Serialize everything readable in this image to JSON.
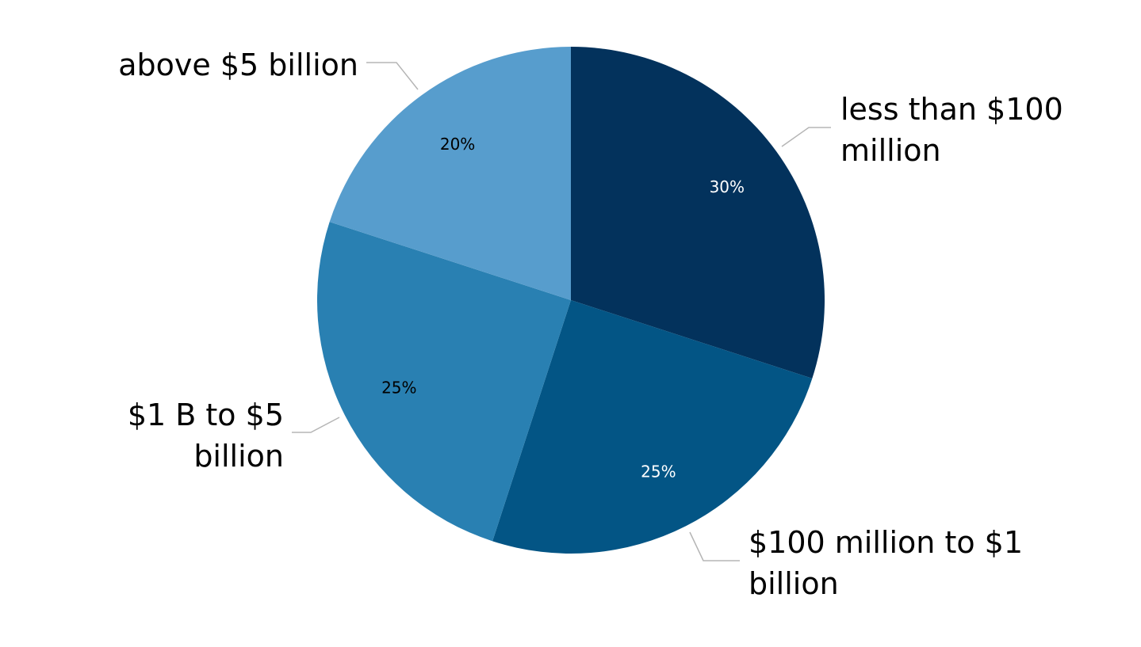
{
  "chart_data": {
    "type": "pie",
    "title": "",
    "start_angle_deg": 0,
    "direction": "clockwise",
    "slices": [
      {
        "label": "less than $100 million",
        "value": 30,
        "value_label": "30%",
        "color": "#03325c",
        "value_label_color": "#ffffff"
      },
      {
        "label": "$100 million to $1 billion",
        "value": 25,
        "value_label": "25%",
        "color": "#035585",
        "value_label_color": "#ffffff"
      },
      {
        "label": "$1 B to $5 billion",
        "value": 25,
        "value_label": "25%",
        "color": "#2980b2",
        "value_label_color": "#000000"
      },
      {
        "label": "above $5 billion",
        "value": 20,
        "value_label": "20%",
        "color": "#579dcd",
        "value_label_color": "#000000"
      }
    ],
    "leader_line_color": "#b5b5b5",
    "legend": "none",
    "data_labels": "inside",
    "category_labels": "outside-with-leader-lines"
  }
}
